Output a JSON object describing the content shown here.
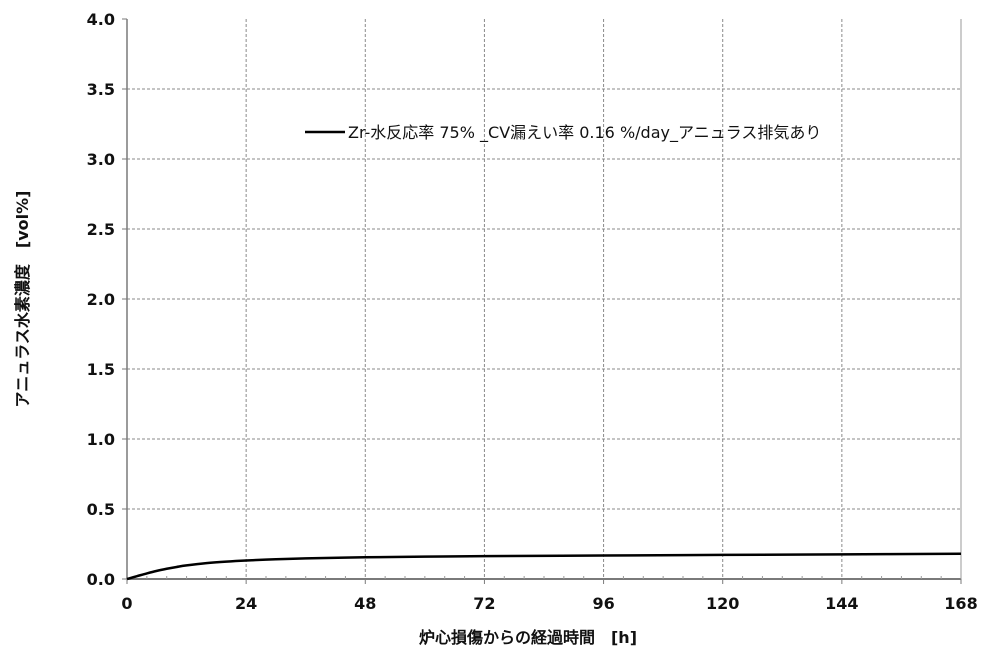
{
  "chart_data": {
    "type": "line",
    "title": "",
    "xlabel": "炉心損傷からの経過時間　[h]",
    "ylabel": "アニュラス水素濃度　[vol%]",
    "xlim": [
      0,
      168
    ],
    "ylim": [
      0,
      4.0
    ],
    "x_ticks": [
      0,
      24,
      48,
      72,
      96,
      120,
      144,
      168
    ],
    "y_ticks": [
      "0.0",
      "0.5",
      "1.0",
      "1.5",
      "2.0",
      "2.5",
      "3.0",
      "3.5",
      "4.0"
    ],
    "grid": true,
    "legend_position": "top-right",
    "series": [
      {
        "name": "Zr-水反応率 75% _CV漏えい率 0.16 %/day_アニュラス排気あり",
        "color": "#000000",
        "x": [
          0,
          2,
          4,
          6,
          8,
          10,
          12,
          16,
          20,
          24,
          30,
          36,
          48,
          60,
          72,
          96,
          120,
          144,
          168
        ],
        "y": [
          0.0,
          0.02,
          0.04,
          0.058,
          0.073,
          0.086,
          0.097,
          0.113,
          0.124,
          0.132,
          0.141,
          0.147,
          0.155,
          0.16,
          0.163,
          0.168,
          0.172,
          0.176,
          0.18
        ]
      }
    ]
  }
}
